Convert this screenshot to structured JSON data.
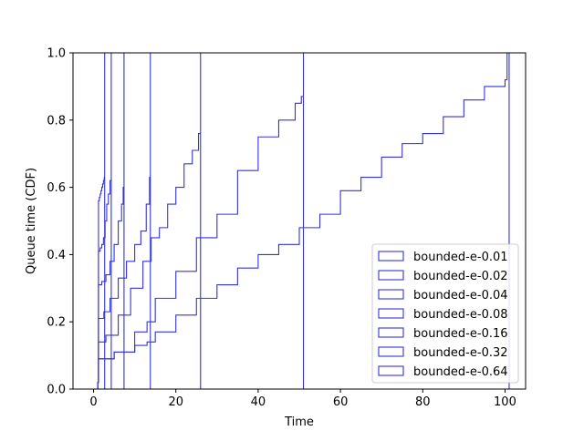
{
  "chart_data": {
    "type": "line",
    "drawstyle": "step",
    "title": "",
    "xlabel": "Time",
    "ylabel": "Queue time (CDF)",
    "xlim": [
      -5,
      105
    ],
    "ylim": [
      0,
      1.0
    ],
    "xticks": [
      0,
      20,
      40,
      60,
      80,
      100
    ],
    "yticks": [
      0.0,
      0.2,
      0.4,
      0.6,
      0.8,
      1.0
    ],
    "xtick_labels": [
      "0",
      "20",
      "40",
      "60",
      "80",
      "100"
    ],
    "ytick_labels": [
      "0.0",
      "0.2",
      "0.4",
      "0.6",
      "0.8",
      "1.0"
    ],
    "grid": false,
    "legend_position": "lower-right",
    "line_color": "#3333dd",
    "series": [
      {
        "name": "bounded-e-0.01",
        "x": [
          0,
          0.9,
          1.0,
          1.2,
          1.4,
          1.6,
          1.8,
          2.0,
          2.2,
          2.4,
          2.6,
          2.7,
          2.7
        ],
        "y": [
          0,
          0,
          0.02,
          0.56,
          0.57,
          0.58,
          0.59,
          0.6,
          0.61,
          0.62,
          0.63,
          0.63,
          1.0
        ]
      },
      {
        "name": "bounded-e-0.02",
        "x": [
          0,
          1.0,
          1.2,
          1.6,
          2.0,
          2.4,
          2.8,
          3.2,
          3.6,
          4.0,
          4.3,
          4.3
        ],
        "y": [
          0,
          0.02,
          0.41,
          0.42,
          0.43,
          0.45,
          0.5,
          0.55,
          0.58,
          0.62,
          0.75,
          1.0
        ]
      },
      {
        "name": "bounded-e-0.04",
        "x": [
          0,
          1.0,
          1.2,
          2.0,
          3.0,
          4.0,
          5.0,
          6.0,
          6.8,
          7.2,
          7.4,
          7.4
        ],
        "y": [
          0,
          0.02,
          0.31,
          0.32,
          0.34,
          0.38,
          0.43,
          0.5,
          0.55,
          0.6,
          0.82,
          1.0
        ]
      },
      {
        "name": "bounded-e-0.08",
        "x": [
          0,
          1.0,
          1.2,
          2.5,
          4.0,
          6.0,
          8.0,
          10.0,
          11.5,
          12.8,
          13.6,
          13.8,
          13.8
        ],
        "y": [
          0,
          0.02,
          0.21,
          0.23,
          0.27,
          0.33,
          0.38,
          0.43,
          0.47,
          0.55,
          0.63,
          0.7,
          1.0
        ]
      },
      {
        "name": "bounded-e-0.16",
        "x": [
          0,
          1.0,
          1.2,
          3.0,
          6.0,
          9.0,
          12.0,
          14.0,
          16.0,
          18.0,
          20.0,
          22.0,
          24.0,
          25.5,
          26.0,
          26.0
        ],
        "y": [
          0,
          0.02,
          0.14,
          0.16,
          0.22,
          0.3,
          0.38,
          0.45,
          0.48,
          0.55,
          0.6,
          0.67,
          0.71,
          0.76,
          0.8,
          1.0
        ]
      },
      {
        "name": "bounded-e-0.32",
        "x": [
          0,
          1.0,
          1.2,
          5.0,
          10.0,
          13.0,
          15.0,
          20.0,
          25.0,
          30.0,
          35.0,
          40.0,
          45.0,
          49.0,
          50.5,
          51.0,
          51.0
        ],
        "y": [
          0,
          0.02,
          0.09,
          0.11,
          0.17,
          0.2,
          0.27,
          0.35,
          0.45,
          0.52,
          0.65,
          0.75,
          0.8,
          0.85,
          0.87,
          0.95,
          1.0
        ]
      },
      {
        "name": "bounded-e-0.64",
        "x": [
          0,
          1.0,
          1.2,
          5.0,
          10.0,
          13.0,
          15.0,
          20.0,
          25.0,
          30.0,
          35.0,
          40.0,
          45.0,
          50.0,
          55.0,
          60.0,
          65.0,
          70.0,
          75.0,
          80.0,
          85.0,
          90.0,
          95.0,
          100.0,
          100.5,
          101.0
        ],
        "y": [
          0,
          0.02,
          0.09,
          0.11,
          0.13,
          0.14,
          0.17,
          0.22,
          0.27,
          0.31,
          0.36,
          0.4,
          0.43,
          0.48,
          0.52,
          0.59,
          0.63,
          0.69,
          0.73,
          0.76,
          0.81,
          0.86,
          0.9,
          0.92,
          1.0,
          1.0
        ]
      }
    ]
  }
}
